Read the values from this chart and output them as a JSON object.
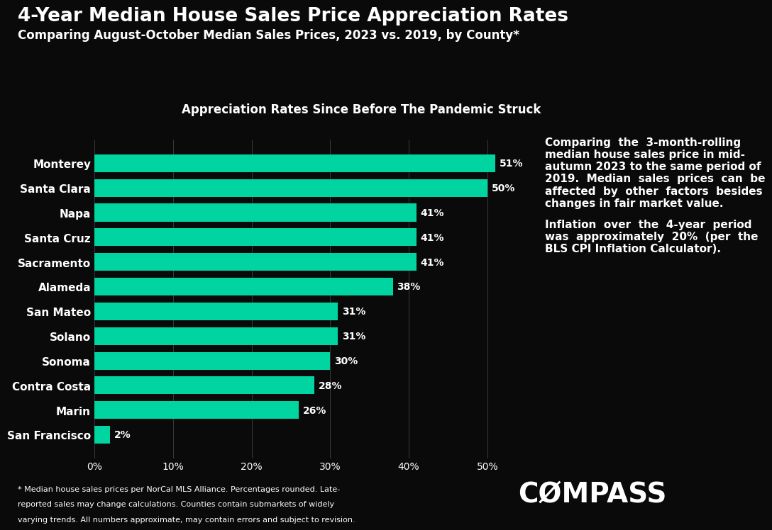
{
  "title": "4-Year Median House Sales Price Appreciation Rates",
  "subtitle": "Comparing August-October Median Sales Prices, 2023 vs. 2019, by County*",
  "chart_title": "Appreciation Rates Since Before The Pandemic Struck",
  "categories": [
    "San Francisco",
    "Marin",
    "Contra Costa",
    "Sonoma",
    "Solano",
    "San Mateo",
    "Alameda",
    "Sacramento",
    "Santa Cruz",
    "Napa",
    "Santa Clara",
    "Monterey"
  ],
  "values": [
    2,
    26,
    28,
    30,
    31,
    31,
    38,
    41,
    41,
    41,
    50,
    51
  ],
  "bar_color": "#00d4a0",
  "background_color": "#0a0a0a",
  "text_color": "#ffffff",
  "xlim": [
    0,
    55
  ],
  "xticks": [
    0,
    10,
    20,
    30,
    40,
    50
  ],
  "xtick_labels": [
    "0%",
    "10%",
    "20%",
    "30%",
    "40%",
    "50%"
  ],
  "footnote_line1": "* Median house sales prices per NorCal MLS Alliance. Percentages rounded. Late-",
  "footnote_line2": "reported sales may change calculations. Counties contain submarkets of widely",
  "footnote_line3": "varying trends. All numbers approximate, may contain errors and subject to revision.",
  "annotation1_lines": [
    "Comparing  the  3-month-rolling",
    "median house sales price in mid-",
    "autumn 2023 to the same period of",
    "2019.  Median  sales  prices  can  be",
    "affected  by  other  factors  besides",
    "changes in fair market value."
  ],
  "annotation2_lines": [
    "Inflation  over  the  4-year  period",
    "was  approximately  20%  (per  the",
    "BLS CPI Inflation Calculator)."
  ],
  "compass_logo": "CØMPASS",
  "bar_height": 0.72,
  "grid_color": "#3a3a3a",
  "title_fontsize": 19,
  "subtitle_fontsize": 12,
  "chart_title_fontsize": 12,
  "ylabel_fontsize": 11,
  "xlabel_fontsize": 10,
  "value_label_fontsize": 10,
  "annotation_fontsize": 11,
  "footnote_fontsize": 8,
  "compass_fontsize": 28
}
